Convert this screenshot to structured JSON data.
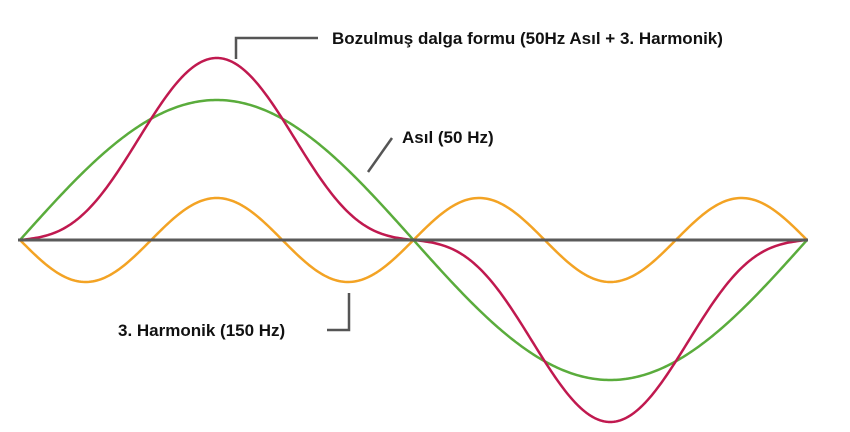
{
  "labels": {
    "distorted": "Bozulmuş dalga formu (50Hz Asıl + 3. Harmonik)",
    "fundamental": "Asıl (50 Hz)",
    "harmonic": "3. Harmonik (150 Hz)"
  },
  "colors": {
    "distorted": "#c0194f",
    "fundamental": "#5aac3c",
    "harmonic": "#f3a324",
    "axis": "#5a5a5a",
    "leader": "#555555"
  },
  "waves": {
    "fundamental_amplitude": 1.0,
    "harmonic_amplitude": 0.3,
    "harmonic_order": 3,
    "periods_shown": 1
  }
}
